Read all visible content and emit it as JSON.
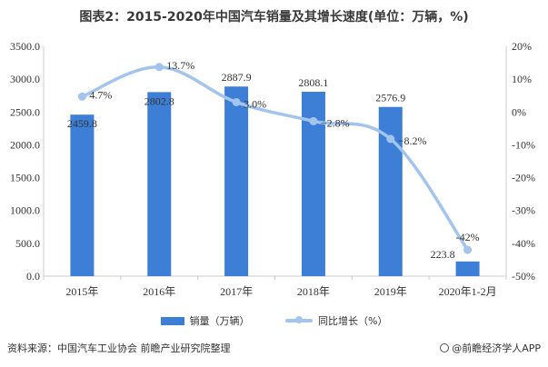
{
  "title": "图表2：2015-2020年中国汽车销量及其增长速度(单位：万辆，%)",
  "source": "资料来源：中国汽车工业协会 前瞻产业研究院整理",
  "brand": "@前瞻经济学人APP",
  "colors": {
    "bar": "#3d7ed6",
    "line": "#a3c4ec",
    "axis": "#cccccc"
  },
  "chart_data": {
    "type": "bar",
    "categories": [
      "2015年",
      "2016年",
      "2017年",
      "2018年",
      "2019年",
      "2020年1-2月"
    ],
    "series": [
      {
        "name": "销量（万辆）",
        "type": "bar",
        "axis": "left",
        "values": [
          2459.8,
          2802.8,
          2887.9,
          2808.1,
          2576.9,
          223.8
        ],
        "labels": [
          "2459.8",
          "2802.8",
          "2887.9",
          "2808.1",
          "2576.9",
          "223.8"
        ]
      },
      {
        "name": "同比增长（%）",
        "type": "line",
        "axis": "right",
        "values": [
          4.7,
          13.7,
          3.0,
          -2.8,
          -8.2,
          -42
        ],
        "labels": [
          "4.7%",
          "13.7%",
          "3.0%",
          "−2.8%",
          "−8.2%",
          "-42%"
        ]
      }
    ],
    "y_left": {
      "min": 0,
      "max": 3500,
      "step": 500,
      "ticks": [
        "0.0",
        "500.0",
        "1000.0",
        "1500.0",
        "2000.0",
        "2500.0",
        "3000.0",
        "3500.0"
      ]
    },
    "y_right": {
      "min": -50,
      "max": 20,
      "step": 10,
      "ticks": [
        "-50%",
        "-40%",
        "-30%",
        "-20%",
        "-10%",
        "0%",
        "10%",
        "20%"
      ]
    },
    "grid": false,
    "legend": "bottom"
  }
}
